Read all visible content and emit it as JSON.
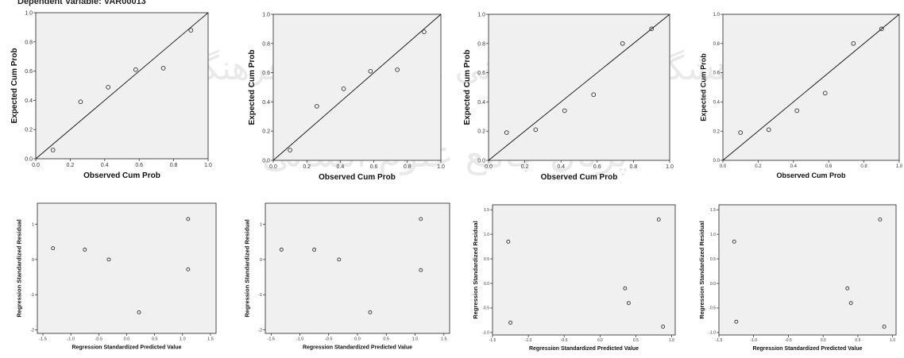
{
  "header_text": "Dependent Variable: VAR00013",
  "watermark": {
    "line1": "پژوهشگاه علوم انسانی و مطالعات فرهنگی",
    "line2": "پرتال جامع علوم انسانی"
  },
  "chart_data": [
    {
      "type": "scatter",
      "title": "",
      "xlabel": "Observed Cum Prob",
      "ylabel": "Expected Cum Prob",
      "xlim": [
        0,
        1
      ],
      "ylim": [
        0,
        1
      ],
      "xticks": [
        "0.0",
        "0.2",
        "0.4",
        "0.6",
        "0.8",
        "1.0"
      ],
      "yticks": [
        "0.0",
        "0.2",
        "0.4",
        "0.6",
        "0.8",
        "1.0"
      ],
      "reference_line": true,
      "x": [
        0.1,
        0.26,
        0.42,
        0.58,
        0.74,
        0.9
      ],
      "y": [
        0.06,
        0.39,
        0.49,
        0.61,
        0.62,
        0.88
      ]
    },
    {
      "type": "scatter",
      "title": "",
      "xlabel": "Observed Cum Prob",
      "ylabel": "Expected Cum Prob",
      "xlim": [
        0,
        1
      ],
      "ylim": [
        0,
        1
      ],
      "xticks": [
        "0.0",
        "0.2",
        "0.4",
        "0.6",
        "0.8",
        "1.0"
      ],
      "yticks": [
        "0.0",
        "0.2",
        "0.4",
        "0.6",
        "0.8",
        "1.0"
      ],
      "reference_line": true,
      "x": [
        0.1,
        0.26,
        0.42,
        0.58,
        0.74,
        0.9
      ],
      "y": [
        0.07,
        0.37,
        0.49,
        0.61,
        0.62,
        0.88
      ]
    },
    {
      "type": "scatter",
      "title": "",
      "xlabel": "Observed Cum Prob",
      "ylabel": "Expected Cum Prob",
      "xlim": [
        0,
        1
      ],
      "ylim": [
        0,
        1
      ],
      "xticks": [
        "0.0",
        "0.2",
        "0.4",
        "0.6",
        "0.8",
        "1.0"
      ],
      "yticks": [
        "0.0",
        "0.2",
        "0.4",
        "0.6",
        "0.8",
        "1.0"
      ],
      "reference_line": true,
      "x": [
        0.1,
        0.26,
        0.42,
        0.58,
        0.74,
        0.9
      ],
      "y": [
        0.19,
        0.21,
        0.34,
        0.45,
        0.8,
        0.9
      ]
    },
    {
      "type": "scatter",
      "title": "",
      "xlabel": "Observed Cum Prob",
      "ylabel": "Expected Cum Prob",
      "xlim": [
        0,
        1
      ],
      "ylim": [
        0,
        1
      ],
      "xticks": [
        "0.0",
        "0.2",
        "0.4",
        "0.6",
        "0.8",
        "1.0"
      ],
      "yticks": [
        "0.0",
        "0.2",
        "0.4",
        "0.6",
        "0.8",
        "1.0"
      ],
      "reference_line": true,
      "x": [
        0.1,
        0.26,
        0.42,
        0.58,
        0.74,
        0.9
      ],
      "y": [
        0.19,
        0.21,
        0.34,
        0.46,
        0.8,
        0.9
      ]
    },
    {
      "type": "scatter",
      "title": "",
      "xlabel": "Regression Standardized Predicted Value",
      "ylabel": "Regression Standardized Residual",
      "xlim": [
        -1.6,
        1.6
      ],
      "ylim": [
        -2.1,
        1.6
      ],
      "xticks": [
        "-1.5",
        "-1.0",
        "-0.5",
        "0.0",
        "0.5",
        "1.0",
        "1.5"
      ],
      "yticks": [
        "-2",
        "-1",
        "0",
        "1"
      ],
      "reference_line": false,
      "x": [
        -1.32,
        -0.75,
        -0.32,
        0.22,
        1.1,
        1.1
      ],
      "y": [
        0.32,
        0.28,
        0.0,
        -1.5,
        1.15,
        -0.28
      ]
    },
    {
      "type": "scatter",
      "title": "",
      "xlabel": "Regression Standardized Predicted Value",
      "ylabel": "Regression Standardized Residual",
      "xlim": [
        -1.6,
        1.6
      ],
      "ylim": [
        -2.1,
        1.6
      ],
      "xticks": [
        "-1.5",
        "-1.0",
        "-0.5",
        "0.0",
        "0.5",
        "1.0",
        "1.5"
      ],
      "yticks": [
        "-2",
        "-1",
        "0",
        "1"
      ],
      "reference_line": false,
      "x": [
        -1.32,
        -0.75,
        -0.32,
        0.22,
        1.1,
        1.1
      ],
      "y": [
        0.28,
        0.28,
        0.0,
        -1.5,
        1.15,
        -0.3
      ]
    },
    {
      "type": "scatter",
      "title": "",
      "xlabel": "Regression Standardized Predicted Value",
      "ylabel": "Regression Standardized Residual",
      "xlim": [
        -1.5,
        1.05
      ],
      "ylim": [
        -1.05,
        1.6
      ],
      "xticks": [
        "-1.5",
        "-1.0",
        "-0.5",
        "0.0",
        "0.5",
        "1.0"
      ],
      "yticks": [
        "-1.0",
        "-0.5",
        "0.0",
        "0.5",
        "1.0",
        "1.5"
      ],
      "reference_line": false,
      "x": [
        -1.28,
        -1.25,
        0.35,
        0.4,
        0.82,
        0.88
      ],
      "y": [
        0.85,
        -0.8,
        -0.1,
        -0.4,
        1.3,
        -0.88
      ]
    },
    {
      "type": "scatter",
      "title": "",
      "xlabel": "Regression Standardized Predicted Value",
      "ylabel": "Regression Standardized Residual",
      "xlim": [
        -1.5,
        1.05
      ],
      "ylim": [
        -1.05,
        1.6
      ],
      "xticks": [
        "-1.5",
        "-1.0",
        "-0.5",
        "0.0",
        "0.5",
        "1.0"
      ],
      "yticks": [
        "-1.0",
        "-0.5",
        "0.0",
        "0.5",
        "1.0",
        "1.5"
      ],
      "reference_line": false,
      "x": [
        -1.28,
        -1.25,
        0.35,
        0.4,
        0.82,
        0.88
      ],
      "y": [
        0.85,
        -0.78,
        -0.1,
        -0.4,
        1.3,
        -0.88
      ]
    }
  ]
}
